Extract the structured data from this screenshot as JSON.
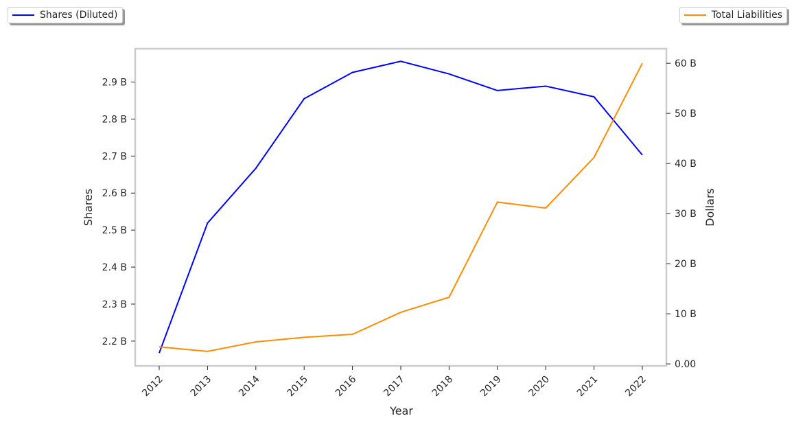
{
  "chart_data": {
    "type": "line",
    "xlabel": "Year",
    "categories": [
      "2012",
      "2013",
      "2014",
      "2015",
      "2016",
      "2017",
      "2018",
      "2019",
      "2020",
      "2021",
      "2022"
    ],
    "series": [
      {
        "name": "Shares (Diluted)",
        "axis": "left",
        "color": "#0000ff",
        "values": [
          2.168,
          2.519,
          2.667,
          2.855,
          2.926,
          2.956,
          2.922,
          2.877,
          2.889,
          2.86,
          2.703
        ]
      },
      {
        "name": "Total Liabilities",
        "axis": "right",
        "color": "#ff8c00",
        "values": [
          3.4,
          2.5,
          4.4,
          5.3,
          5.9,
          10.3,
          13.3,
          32.3,
          31.1,
          41.2,
          60.0
        ]
      }
    ],
    "left_axis": {
      "label": "Shares",
      "unit": "B",
      "ylim": [
        2.133,
        2.99
      ],
      "ticks": [
        2.2,
        2.3,
        2.4,
        2.5,
        2.6,
        2.7,
        2.8,
        2.9
      ],
      "tick_labels": [
        "2.2 B",
        "2.3 B",
        "2.4 B",
        "2.5 B",
        "2.6 B",
        "2.7 B",
        "2.8 B",
        "2.9 B"
      ]
    },
    "right_axis": {
      "label": "Dollars",
      "unit": "B",
      "ylim": [
        -0.4,
        62.9
      ],
      "ticks": [
        0,
        10,
        20,
        30,
        40,
        50,
        60
      ],
      "tick_labels": [
        "0.00",
        "10 B",
        "20 B",
        "30 B",
        "40 B",
        "50 B",
        "60 B"
      ]
    },
    "grid": false,
    "legend_placement": [
      "top-left",
      "top-right"
    ]
  }
}
